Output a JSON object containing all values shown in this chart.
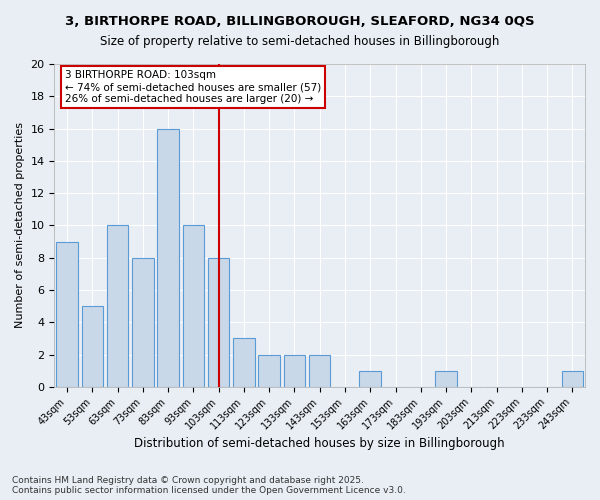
{
  "title_line1": "3, BIRTHORPE ROAD, BILLINGBOROUGH, SLEAFORD, NG34 0QS",
  "title_line2": "Size of property relative to semi-detached houses in Billingborough",
  "xlabel": "Distribution of semi-detached houses by size in Billingborough",
  "ylabel": "Number of semi-detached properties",
  "footnote": "Contains HM Land Registry data © Crown copyright and database right 2025.\nContains public sector information licensed under the Open Government Licence v3.0.",
  "bar_labels": [
    "43sqm",
    "53sqm",
    "63sqm",
    "73sqm",
    "83sqm",
    "93sqm",
    "103sqm",
    "113sqm",
    "123sqm",
    "133sqm",
    "143sqm",
    "153sqm",
    "163sqm",
    "173sqm",
    "183sqm",
    "193sqm",
    "203sqm",
    "213sqm",
    "223sqm",
    "233sqm",
    "243sqm"
  ],
  "bar_values": [
    9,
    5,
    10,
    8,
    16,
    10,
    8,
    3,
    2,
    2,
    2,
    0,
    1,
    0,
    0,
    1,
    0,
    0,
    0,
    0,
    1
  ],
  "bar_color": "#c8d8e8",
  "bar_edgecolor": "#5b9bd5",
  "property_line_label": "3 BIRTHORPE ROAD: 103sqm",
  "pct_smaller": 74,
  "pct_smaller_count": 57,
  "pct_larger": 26,
  "pct_larger_count": 20,
  "annotation_box_color": "#cc0000",
  "ylim": [
    0,
    20
  ],
  "yticks": [
    0,
    2,
    4,
    6,
    8,
    10,
    12,
    14,
    16,
    18,
    20
  ],
  "bg_color": "#e8eef4",
  "grid_color": "#ffffff"
}
